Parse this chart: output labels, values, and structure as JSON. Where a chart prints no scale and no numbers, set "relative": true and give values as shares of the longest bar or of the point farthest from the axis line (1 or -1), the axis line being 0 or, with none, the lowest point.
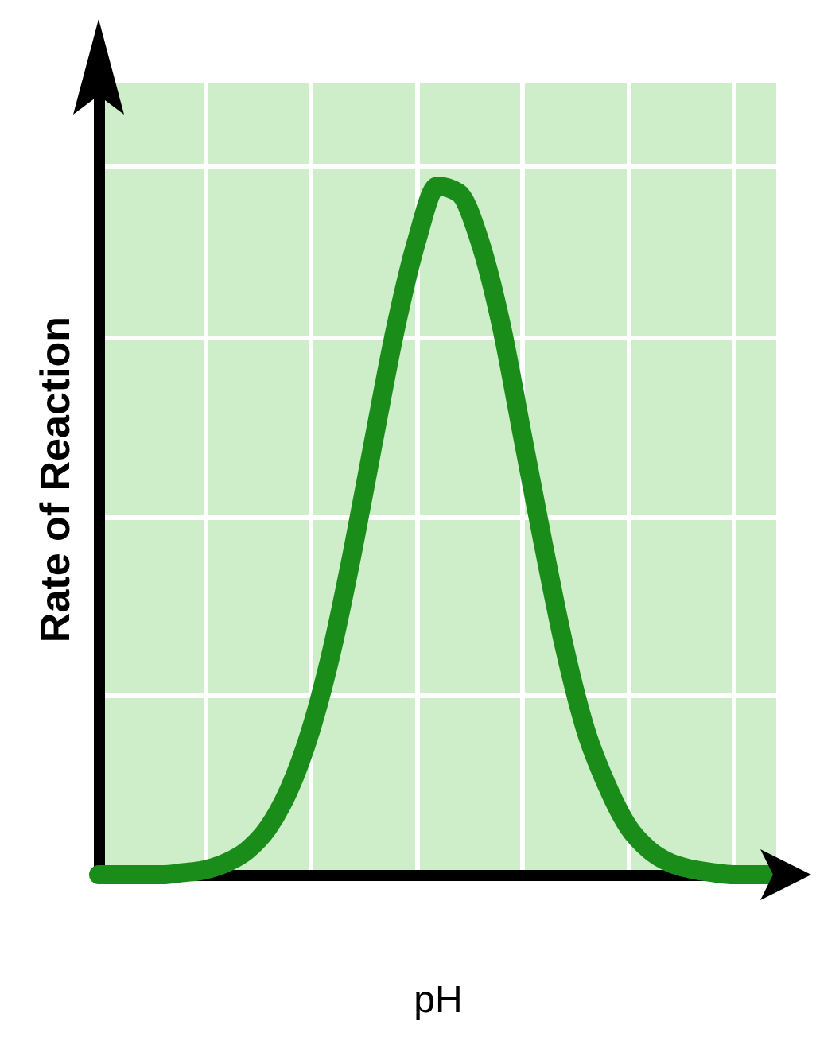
{
  "chart_data": {
    "type": "line",
    "xlabel": "pH",
    "ylabel": "Rate of Reaction",
    "relative": true,
    "grid": true,
    "categories": [
      null,
      null,
      null,
      null,
      null,
      null,
      null,
      null,
      null,
      null,
      null,
      null,
      null,
      null,
      null,
      null,
      null,
      null,
      null,
      null,
      null,
      null,
      null,
      null,
      null,
      null,
      null,
      null,
      null,
      null,
      null,
      null,
      null
    ],
    "series": [
      {
        "color": "#1a8c1a",
        "values": [
          0,
          0,
          0,
          0,
          0.003,
          0.007,
          0.017,
          0.035,
          0.068,
          0.124,
          0.208,
          0.324,
          0.47,
          0.632,
          0.79,
          0.918,
          1,
          0.99,
          0.92,
          0.8,
          0.64,
          0.48,
          0.33,
          0.21,
          0.13,
          0.07,
          0.036,
          0.017,
          0.008,
          0.003,
          0,
          0,
          0
        ]
      }
    ]
  }
}
